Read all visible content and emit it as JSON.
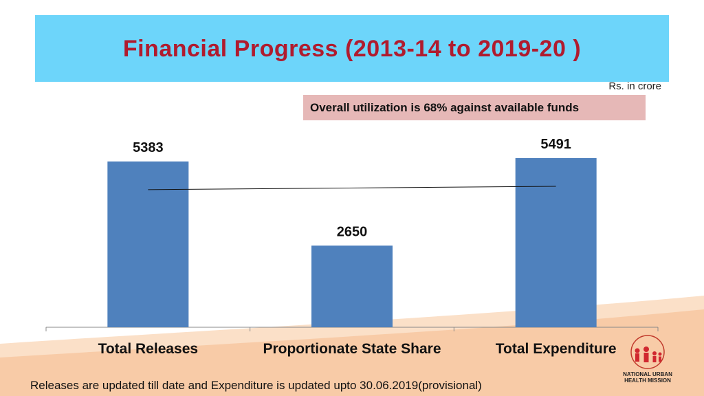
{
  "header": {
    "title": "Financial Progress (2013-14 to 2019-20 )"
  },
  "unit_note": "Rs. in crore",
  "utilization_note": "Overall utilization is 68% against available funds",
  "footer_note": "Releases are updated till date and Expenditure is updated upto 30.06.2019(provisional)",
  "logo": {
    "arc_text": "NATIONAL HEALTH MISSION",
    "line1": "NATIONAL URBAN",
    "line2": "HEALTH MISSION"
  },
  "colors": {
    "bar": "#4f81bd",
    "title": "#b01b2e",
    "title_band": "#6dd5fa",
    "util_box": "#e6b8b7",
    "swoosh": "#f7c59f"
  },
  "chart_data": {
    "type": "bar",
    "categories": [
      "Total Releases",
      "Proportionate State Share",
      "Total Expenditure"
    ],
    "values": [
      5383,
      2650,
      5491
    ],
    "data_labels": [
      "5383",
      "2650",
      "5491"
    ],
    "ylim": [
      0,
      6000
    ],
    "trend_line": {
      "from_category": "Total Releases",
      "to_category": "Total Expenditure"
    },
    "grid": false,
    "legend": "none"
  }
}
